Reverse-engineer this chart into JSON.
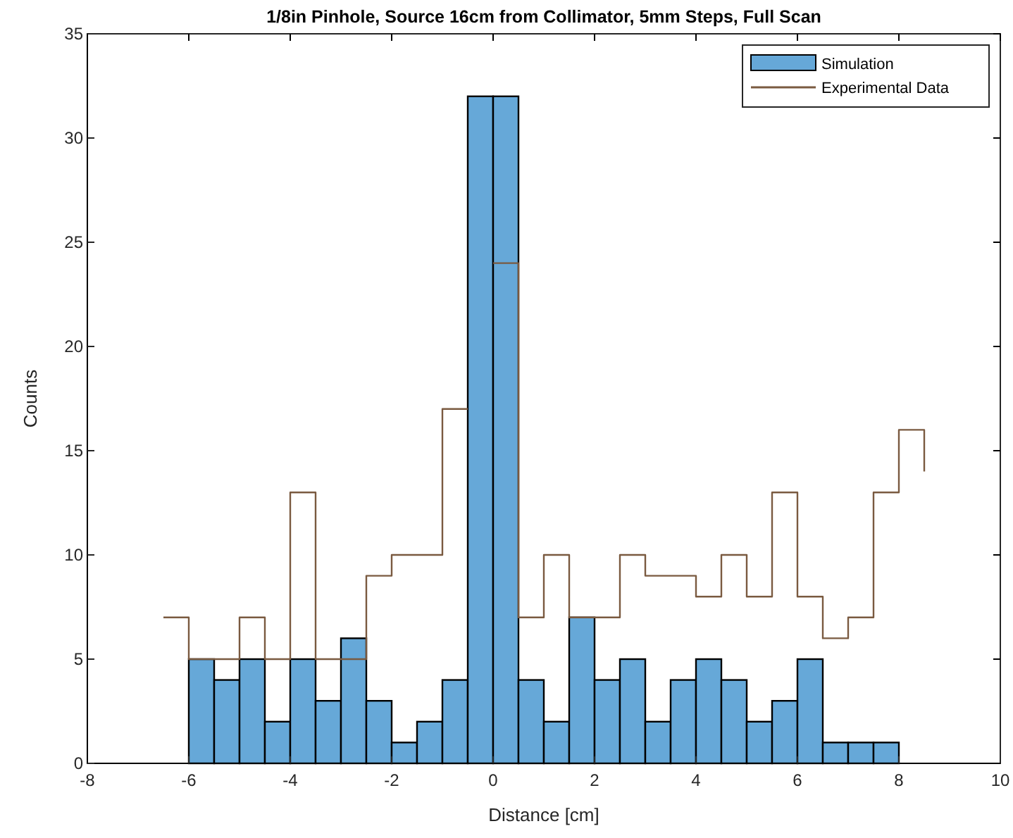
{
  "chart_data": {
    "type": "histogram",
    "title": "1/8in Pinhole, Source 16cm from Collimator, 5mm Steps, Full Scan",
    "xlabel": "Distance [cm]",
    "ylabel": "Counts",
    "bins": [
      -6,
      -5.5,
      -5,
      -4.5,
      -4,
      -3.5,
      -3,
      -2.5,
      -2,
      -1.5,
      -1,
      -0.5,
      0,
      0.5,
      1,
      1.5,
      2,
      2.5,
      3,
      3.5,
      4,
      4.5,
      5,
      5.5,
      6,
      6.5,
      7,
      7.5,
      8
    ],
    "series": [
      {
        "name": "Simulation",
        "color": "#66a8d8",
        "values": [
          5,
          4,
          5,
          2,
          5,
          3,
          6,
          3,
          1,
          2,
          4,
          32,
          32,
          4,
          2,
          7,
          4,
          5,
          2,
          4,
          5,
          4,
          2,
          3,
          5,
          1,
          1,
          1
        ]
      },
      {
        "name": "Experimental Data",
        "type": "step",
        "color": "#7a5a40",
        "x": [
          -6.5,
          -6,
          -5.5,
          -5,
          -4.5,
          -4,
          -3.5,
          -3,
          -2.5,
          -2,
          -1.5,
          -1,
          -0.5,
          0,
          0.5,
          1,
          1.5,
          2,
          2.5,
          3,
          3.5,
          4,
          4.5,
          5,
          5.5,
          6,
          6.5,
          7,
          7.5,
          8,
          8.5
        ],
        "values": [
          7,
          5,
          5,
          7,
          5,
          13,
          5,
          5,
          9,
          10,
          10,
          17,
          null,
          24,
          7,
          10,
          7,
          7,
          10,
          9,
          9,
          8,
          10,
          8,
          13,
          8,
          6,
          7,
          13,
          16,
          14
        ]
      }
    ],
    "xlim": [
      -8,
      10
    ],
    "xticks": [
      -8,
      -6,
      -4,
      -2,
      0,
      2,
      4,
      6,
      8,
      10
    ],
    "ylim": [
      0,
      35
    ],
    "yticks": [
      0,
      5,
      10,
      15,
      20,
      25,
      30,
      35
    ],
    "legend": "top right"
  }
}
